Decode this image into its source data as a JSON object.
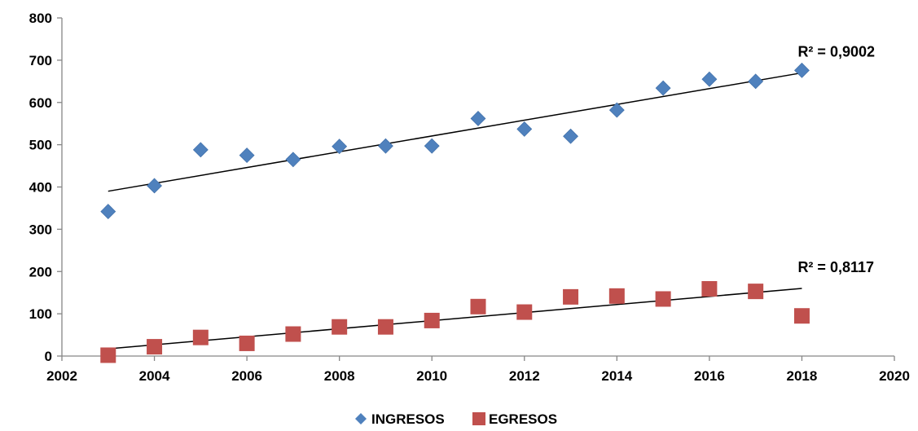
{
  "chart_data": {
    "type": "scatter",
    "title": "",
    "xlabel": "",
    "ylabel": "",
    "xlim": [
      2002,
      2020
    ],
    "ylim": [
      0,
      800
    ],
    "x_ticks": [
      2002,
      2004,
      2006,
      2008,
      2010,
      2012,
      2014,
      2016,
      2018,
      2020
    ],
    "y_ticks": [
      0,
      100,
      200,
      300,
      400,
      500,
      600,
      700,
      800
    ],
    "grid": false,
    "legend_position": "bottom",
    "series": [
      {
        "name": "INGRESOS",
        "marker": "diamond",
        "color": "#4F81BD",
        "x": [
          2003,
          2004,
          2005,
          2006,
          2007,
          2008,
          2009,
          2010,
          2011,
          2012,
          2013,
          2014,
          2015,
          2016,
          2017,
          2018
        ],
        "y": [
          342,
          403,
          488,
          475,
          465,
          496,
          497,
          497,
          562,
          537,
          520,
          582,
          634,
          655,
          650,
          676
        ],
        "trendline": {
          "x": [
            2003,
            2018
          ],
          "y": [
            390,
            670
          ],
          "r2_label": "R² = 0,9002"
        }
      },
      {
        "name": "EGRESOS",
        "marker": "square",
        "color": "#C0504D",
        "x": [
          2003,
          2004,
          2005,
          2006,
          2007,
          2008,
          2009,
          2010,
          2011,
          2012,
          2013,
          2014,
          2015,
          2016,
          2017,
          2018
        ],
        "y": [
          2,
          22,
          44,
          30,
          52,
          69,
          69,
          84,
          117,
          104,
          140,
          142,
          135,
          159,
          153,
          95
        ],
        "trendline": {
          "x": [
            2003,
            2018
          ],
          "y": [
            17,
            160
          ],
          "r2_label": "R² = 0,8117"
        }
      }
    ]
  }
}
